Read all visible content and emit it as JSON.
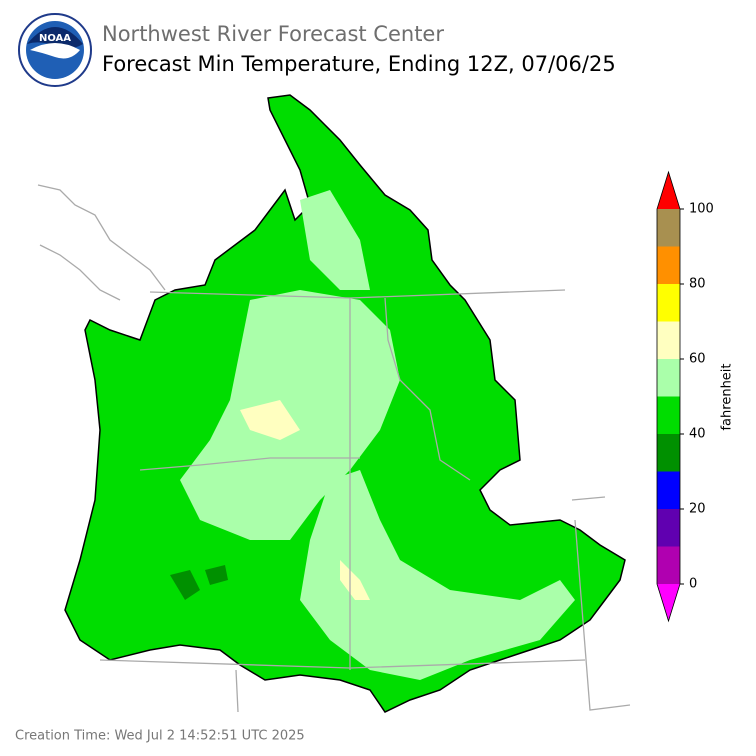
{
  "header": {
    "agency": "Northwest River Forecast Center",
    "title": "Forecast Min Temperature, Ending 12Z, 07/06/25",
    "logo_text": "NOAA"
  },
  "colorbar": {
    "label": "fahrenheit",
    "levels": [
      0,
      10,
      20,
      30,
      40,
      50,
      60,
      70,
      80,
      90,
      100
    ],
    "colors": [
      "#b000b0",
      "#6000b0",
      "#0000ff",
      "#009000",
      "#00dd00",
      "#aaffaa",
      "#ffffc0",
      "#ffff00",
      "#ff9000",
      "#a89050"
    ],
    "under_color": "#ff00ff",
    "over_color": "#ff0000",
    "ticks": [
      0,
      20,
      40,
      60,
      80,
      100
    ]
  },
  "footer": {
    "creation_time": "Creation Time: Wed Jul 2 14:52:51 UTC 2025"
  }
}
